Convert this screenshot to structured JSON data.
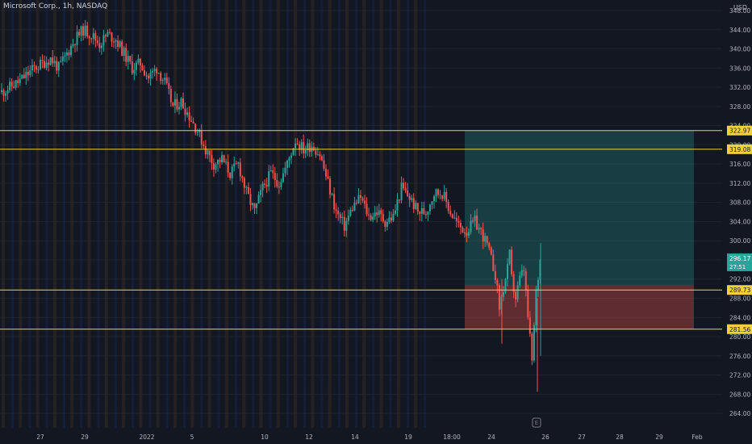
{
  "header": {
    "symbol_title": "Microsoft Corp., 1h, NASDAQ",
    "currency": "USD"
  },
  "colors": {
    "background": "#131722",
    "up": "#26a69a",
    "down": "#ef5350",
    "level_line": "#f2d13a",
    "session_premarket": "#e0832f",
    "session_afterhours": "#2962ff",
    "profit_zone": "#26a69a",
    "loss_zone": "#ef5350"
  },
  "chart_data": {
    "type": "candlestick",
    "interval": "1h",
    "y_axis": {
      "ylim": [
        262,
        351
      ],
      "ticks": [
        348,
        344,
        340,
        336,
        332,
        328,
        324,
        320,
        316,
        312,
        308,
        304,
        300,
        296,
        292,
        288,
        284,
        280,
        276,
        272,
        268,
        264
      ],
      "tick_labels": [
        "348.00",
        "344.00",
        "340.00",
        "336.00",
        "332.00",
        "328.00",
        "324.00",
        "320.00",
        "316.00",
        "312.00",
        "308.00",
        "304.00",
        "300.00",
        "296.00",
        "292.00",
        "288.00",
        "284.00",
        "280.00",
        "276.00",
        "272.00",
        "268.00",
        "264.00"
      ]
    },
    "x_axis": {
      "ticks": [
        "27",
        "29",
        "2022",
        "5",
        "10",
        "12",
        "14",
        "19",
        "18:00",
        "24",
        "26",
        "27",
        "28",
        "29",
        "Feb"
      ]
    },
    "horizontal_levels": [
      {
        "price": 322.97,
        "label": "322.97"
      },
      {
        "price": 319.08,
        "label": "319.08"
      },
      {
        "price": 289.73,
        "label": "289.73"
      },
      {
        "price": 281.56,
        "label": "281.56"
      }
    ],
    "last_price": {
      "price": 296.17,
      "label": "296.17",
      "countdown": "27:51"
    },
    "position_tool": {
      "entry": 290.8,
      "target": 322.97,
      "stop": 281.56
    },
    "bar_marker": "E",
    "price_path": [
      [
        0,
        331
      ],
      [
        8,
        333
      ],
      [
        16,
        336
      ],
      [
        24,
        338
      ],
      [
        28,
        336
      ],
      [
        32,
        339
      ],
      [
        36,
        342
      ],
      [
        40,
        344
      ],
      [
        44,
        343
      ],
      [
        48,
        341
      ],
      [
        52,
        343
      ],
      [
        56,
        342
      ],
      [
        60,
        339
      ],
      [
        64,
        336
      ],
      [
        68,
        337
      ],
      [
        72,
        334
      ],
      [
        76,
        336
      ],
      [
        80,
        333
      ],
      [
        84,
        328
      ],
      [
        88,
        329
      ],
      [
        92,
        326
      ],
      [
        96,
        323
      ],
      [
        100,
        319
      ],
      [
        104,
        316
      ],
      [
        108,
        317
      ],
      [
        112,
        314
      ],
      [
        116,
        316
      ],
      [
        120,
        310
      ],
      [
        124,
        306
      ],
      [
        128,
        311
      ],
      [
        132,
        314
      ],
      [
        136,
        312
      ],
      [
        140,
        316
      ],
      [
        144,
        321
      ],
      [
        148,
        319
      ],
      [
        152,
        320
      ],
      [
        156,
        318
      ],
      [
        160,
        312
      ],
      [
        164,
        306
      ],
      [
        168,
        303
      ],
      [
        172,
        307
      ],
      [
        176,
        309
      ],
      [
        180,
        305
      ],
      [
        184,
        306
      ],
      [
        188,
        304
      ],
      [
        192,
        305
      ],
      [
        196,
        311
      ],
      [
        200,
        309
      ],
      [
        204,
        306
      ],
      [
        208,
        306
      ],
      [
        212,
        310
      ],
      [
        216,
        310
      ],
      [
        220,
        306
      ],
      [
        224,
        303
      ],
      [
        228,
        302
      ],
      [
        232,
        304
      ],
      [
        236,
        301
      ],
      [
        238,
        299
      ],
      [
        240,
        296
      ],
      [
        242,
        293
      ],
      [
        244,
        286
      ],
      [
        246,
        290
      ],
      [
        248,
        294
      ],
      [
        249,
        297
      ],
      [
        250,
        292
      ],
      [
        252,
        288
      ],
      [
        254,
        292
      ],
      [
        256,
        294
      ],
      [
        258,
        284
      ],
      [
        260,
        275
      ],
      [
        262,
        289
      ],
      [
        264,
        296
      ]
    ],
    "volatility_band": 1.6,
    "candle_count": 265,
    "candle_seed": 11
  }
}
